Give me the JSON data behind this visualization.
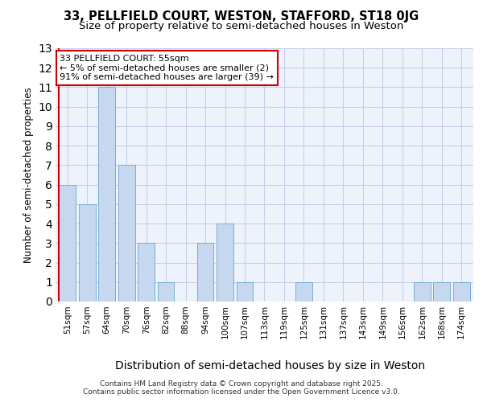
{
  "title1": "33, PELLFIELD COURT, WESTON, STAFFORD, ST18 0JG",
  "title2": "Size of property relative to semi-detached houses in Weston",
  "xlabel": "Distribution of semi-detached houses by size in Weston",
  "ylabel": "Number of semi-detached properties",
  "categories": [
    "51sqm",
    "57sqm",
    "64sqm",
    "70sqm",
    "76sqm",
    "82sqm",
    "88sqm",
    "94sqm",
    "100sqm",
    "107sqm",
    "113sqm",
    "119sqm",
    "125sqm",
    "131sqm",
    "137sqm",
    "143sqm",
    "149sqm",
    "156sqm",
    "162sqm",
    "168sqm",
    "174sqm"
  ],
  "values": [
    6,
    5,
    11,
    7,
    3,
    1,
    0,
    3,
    4,
    1,
    0,
    0,
    1,
    0,
    0,
    0,
    0,
    0,
    1,
    1,
    1
  ],
  "bar_color": "#c5d8f0",
  "bar_edge_color": "#7aadd4",
  "highlight_edge_color": "#cc0000",
  "annotation_text": "33 PELLFIELD COURT: 55sqm\n← 5% of semi-detached houses are smaller (2)\n91% of semi-detached houses are larger (39) →",
  "annotation_box_edge": "#cc0000",
  "ylim": [
    0,
    13
  ],
  "yticks": [
    0,
    1,
    2,
    3,
    4,
    5,
    6,
    7,
    8,
    9,
    10,
    11,
    12,
    13
  ],
  "footer": "Contains HM Land Registry data © Crown copyright and database right 2025.\nContains public sector information licensed under the Open Government Licence v3.0.",
  "bg_color": "#eef3fb",
  "grid_color": "#c5d0e8",
  "title1_fontsize": 10.5,
  "title2_fontsize": 9.5,
  "xlabel_fontsize": 10,
  "ylabel_fontsize": 8.5,
  "tick_fontsize": 7.5,
  "ann_fontsize": 8,
  "footer_fontsize": 6.5
}
